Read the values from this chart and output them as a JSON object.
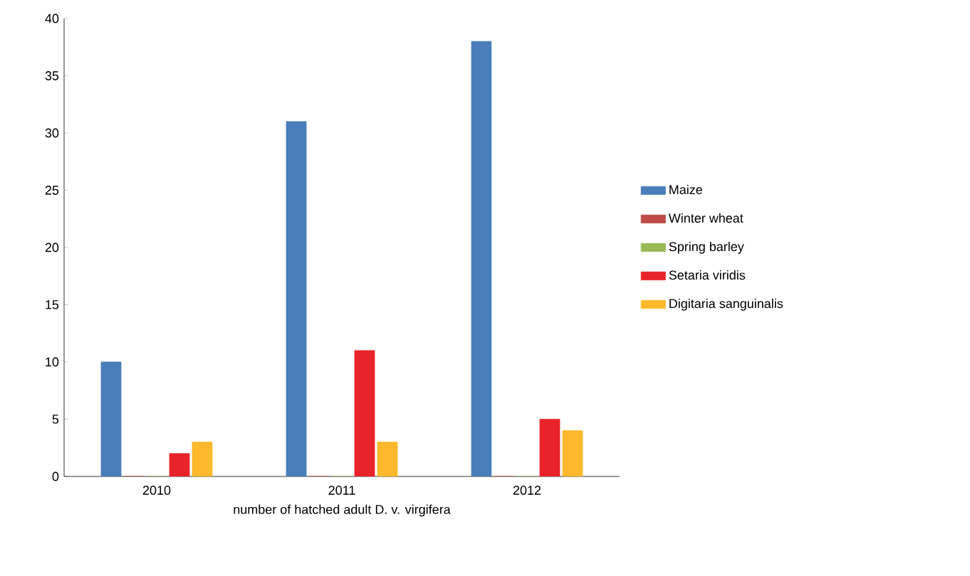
{
  "chart_data": {
    "type": "bar",
    "xlabel": "number of hatched adult D. v. virgifera",
    "categories": [
      "2010",
      "2011",
      "2012"
    ],
    "series": [
      {
        "name": "Maize",
        "color": "#4a7ebb",
        "values": [
          10,
          31,
          38
        ]
      },
      {
        "name": "Winter wheat",
        "color": "#be4b48",
        "values": [
          0,
          0,
          0
        ]
      },
      {
        "name": "Spring barley",
        "color": "#98b954",
        "values": [
          0,
          0,
          0
        ]
      },
      {
        "name": "Setaria viridis",
        "color": "#e8242a",
        "values": [
          2,
          11,
          5
        ]
      },
      {
        "name": "Digitaria sanguinalis",
        "color": "#fdb92b",
        "values": [
          3,
          3,
          4
        ]
      }
    ],
    "ylim": [
      0,
      40
    ],
    "yticks": [
      0,
      5,
      10,
      15,
      20,
      25,
      30,
      35,
      40
    ],
    "grid": false,
    "legend": "right"
  }
}
